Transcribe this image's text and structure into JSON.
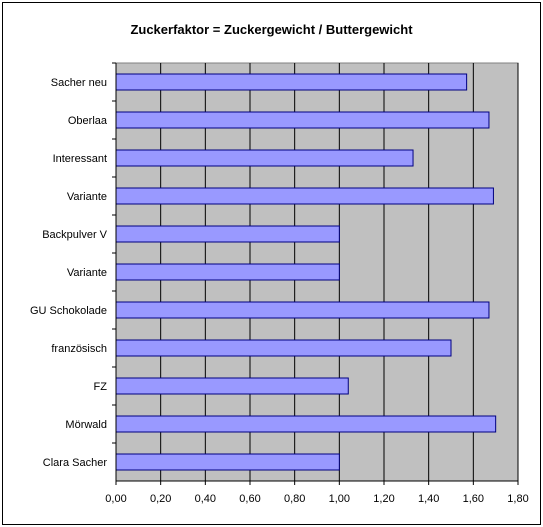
{
  "chart_data": {
    "type": "bar",
    "orientation": "horizontal",
    "title": "Zuckerfaktor = Zuckergewicht / Buttergewicht",
    "categories": [
      "Sacher neu",
      "Oberlaa",
      "Interessant",
      "Variante",
      "Backpulver V",
      "Variante",
      "GU Schokolade",
      "französisch",
      "FZ",
      "Mörwald",
      "Clara Sacher"
    ],
    "values": [
      1.57,
      1.67,
      1.33,
      1.69,
      1.0,
      1.0,
      1.67,
      1.5,
      1.04,
      1.7,
      1.0
    ],
    "xlim": [
      0,
      1.8
    ],
    "x_ticks": [
      "0,00",
      "0,20",
      "0,40",
      "0,60",
      "0,80",
      "1,00",
      "1,20",
      "1,40",
      "1,60",
      "1,80"
    ],
    "grid": true,
    "legend": "none",
    "colors": {
      "bar_fill": "#9999ff",
      "bar_stroke": "#000080",
      "plot_background": "#c0c0c0",
      "gridline": "#000000"
    }
  }
}
